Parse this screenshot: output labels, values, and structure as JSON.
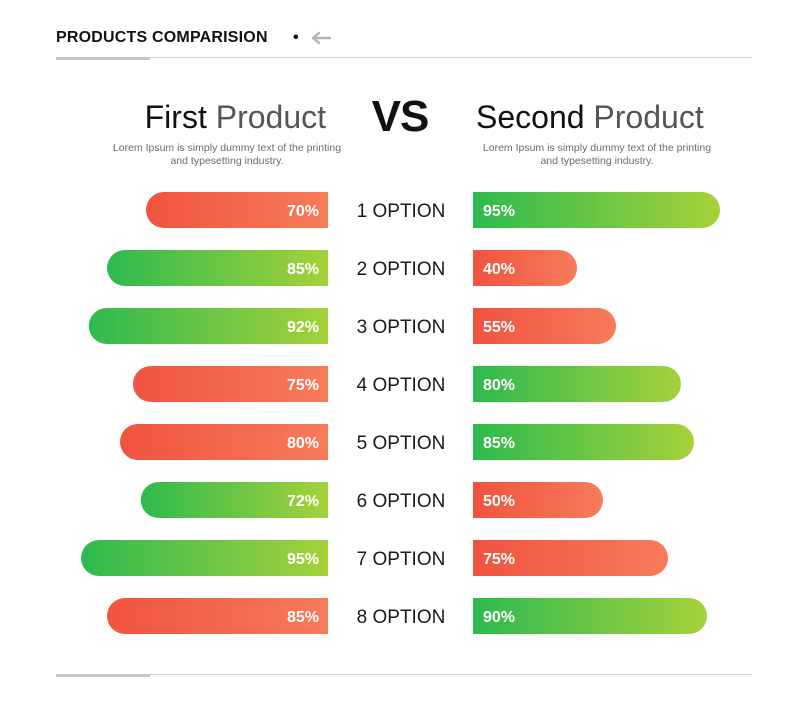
{
  "header": {
    "title": "PRODUCTS COMPARISION",
    "dot": "•",
    "arrow_icon": "arrow-left-icon"
  },
  "products": {
    "left": {
      "title_word1": "First",
      "title_word2": "Product",
      "description": "Lorem Ipsum is simply dummy text of the printing and typesetting industry."
    },
    "right": {
      "title_word1": "Second",
      "title_word2": "Product",
      "description": "Lorem Ipsum is simply dummy text of the printing and typesetting industry."
    },
    "vs": "VS"
  },
  "colors": {
    "red_start": "#f0533f",
    "red_end": "#f77b5a",
    "green_start": "#2dba4e",
    "green_end": "#a6d13a",
    "text_dark": "#1a1a1a"
  },
  "chart_data": {
    "type": "bar",
    "orientation": "horizontal-diverging",
    "categories": [
      "1 OPTION",
      "2 OPTION",
      "3 OPTION",
      "4 OPTION",
      "5 OPTION",
      "6 OPTION",
      "7 OPTION",
      "8 OPTION"
    ],
    "series": [
      {
        "name": "First Product",
        "values": [
          70,
          85,
          92,
          75,
          80,
          72,
          95,
          85
        ],
        "labels": [
          "70%",
          "85%",
          "92%",
          "75%",
          "80%",
          "72%",
          "95%",
          "85%"
        ],
        "colors": [
          "red",
          "green",
          "green",
          "red",
          "red",
          "green",
          "green",
          "red"
        ]
      },
      {
        "name": "Second Product",
        "values": [
          95,
          40,
          55,
          80,
          85,
          50,
          75,
          90
        ],
        "labels": [
          "95%",
          "40%",
          "55%",
          "80%",
          "85%",
          "50%",
          "75%",
          "90%"
        ],
        "colors": [
          "green",
          "red",
          "red",
          "green",
          "green",
          "red",
          "red",
          "green"
        ]
      }
    ],
    "unit": "%"
  }
}
